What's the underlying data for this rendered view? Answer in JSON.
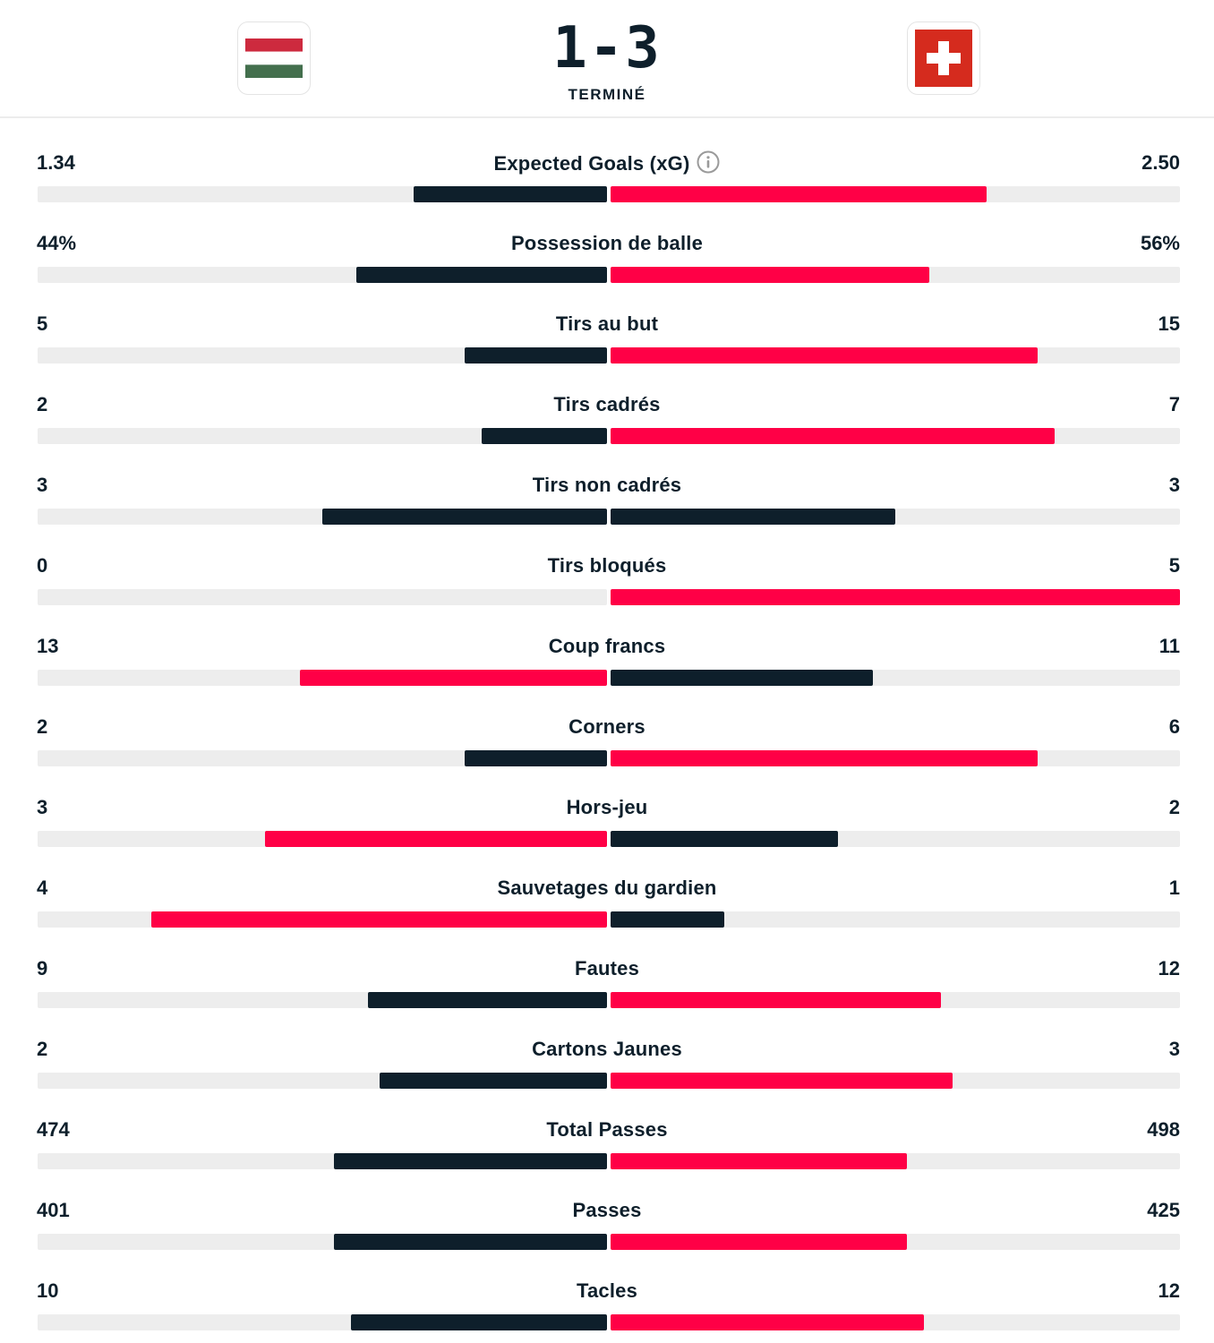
{
  "match": {
    "score": "1-3",
    "status": "TERMINÉ",
    "home_flag": "hungary-flag",
    "away_flag": "switzerland-flag"
  },
  "colors": {
    "lead": "#ff0046",
    "other": "#0e1f2b",
    "track": "#ededed"
  },
  "stats": [
    {
      "label": "Expected Goals (xG)",
      "home": "1.34",
      "away": "2.50",
      "home_fill": 0.34,
      "away_fill": 0.66,
      "home_color": "dark",
      "away_color": "red",
      "info": true
    },
    {
      "label": "Possession de balle",
      "home": "44%",
      "away": "56%",
      "home_fill": 0.44,
      "away_fill": 0.56,
      "home_color": "dark",
      "away_color": "red"
    },
    {
      "label": "Tirs au but",
      "home": "5",
      "away": "15",
      "home_fill": 0.25,
      "away_fill": 0.75,
      "home_color": "dark",
      "away_color": "red"
    },
    {
      "label": "Tirs cadrés",
      "home": "2",
      "away": "7",
      "home_fill": 0.22,
      "away_fill": 0.78,
      "home_color": "dark",
      "away_color": "red"
    },
    {
      "label": "Tirs non cadrés",
      "home": "3",
      "away": "3",
      "home_fill": 0.5,
      "away_fill": 0.5,
      "home_color": "dark",
      "away_color": "dark"
    },
    {
      "label": "Tirs bloqués",
      "home": "0",
      "away": "5",
      "home_fill": 0.0,
      "away_fill": 1.0,
      "home_color": "dark",
      "away_color": "red"
    },
    {
      "label": "Coup francs",
      "home": "13",
      "away": "11",
      "home_fill": 0.54,
      "away_fill": 0.46,
      "home_color": "red",
      "away_color": "dark"
    },
    {
      "label": "Corners",
      "home": "2",
      "away": "6",
      "home_fill": 0.25,
      "away_fill": 0.75,
      "home_color": "dark",
      "away_color": "red"
    },
    {
      "label": "Hors-jeu",
      "home": "3",
      "away": "2",
      "home_fill": 0.6,
      "away_fill": 0.4,
      "home_color": "red",
      "away_color": "dark"
    },
    {
      "label": "Sauvetages du gardien",
      "home": "4",
      "away": "1",
      "home_fill": 0.8,
      "away_fill": 0.2,
      "home_color": "red",
      "away_color": "dark"
    },
    {
      "label": "Fautes",
      "home": "9",
      "away": "12",
      "home_fill": 0.42,
      "away_fill": 0.58,
      "home_color": "dark",
      "away_color": "red"
    },
    {
      "label": "Cartons Jaunes",
      "home": "2",
      "away": "3",
      "home_fill": 0.4,
      "away_fill": 0.6,
      "home_color": "dark",
      "away_color": "red"
    },
    {
      "label": "Total Passes",
      "home": "474",
      "away": "498",
      "home_fill": 0.48,
      "away_fill": 0.52,
      "home_color": "dark",
      "away_color": "red"
    },
    {
      "label": "Passes",
      "home": "401",
      "away": "425",
      "home_fill": 0.48,
      "away_fill": 0.52,
      "home_color": "dark",
      "away_color": "red"
    },
    {
      "label": "Tacles",
      "home": "10",
      "away": "12",
      "home_fill": 0.45,
      "away_fill": 0.55,
      "home_color": "dark",
      "away_color": "red"
    }
  ]
}
